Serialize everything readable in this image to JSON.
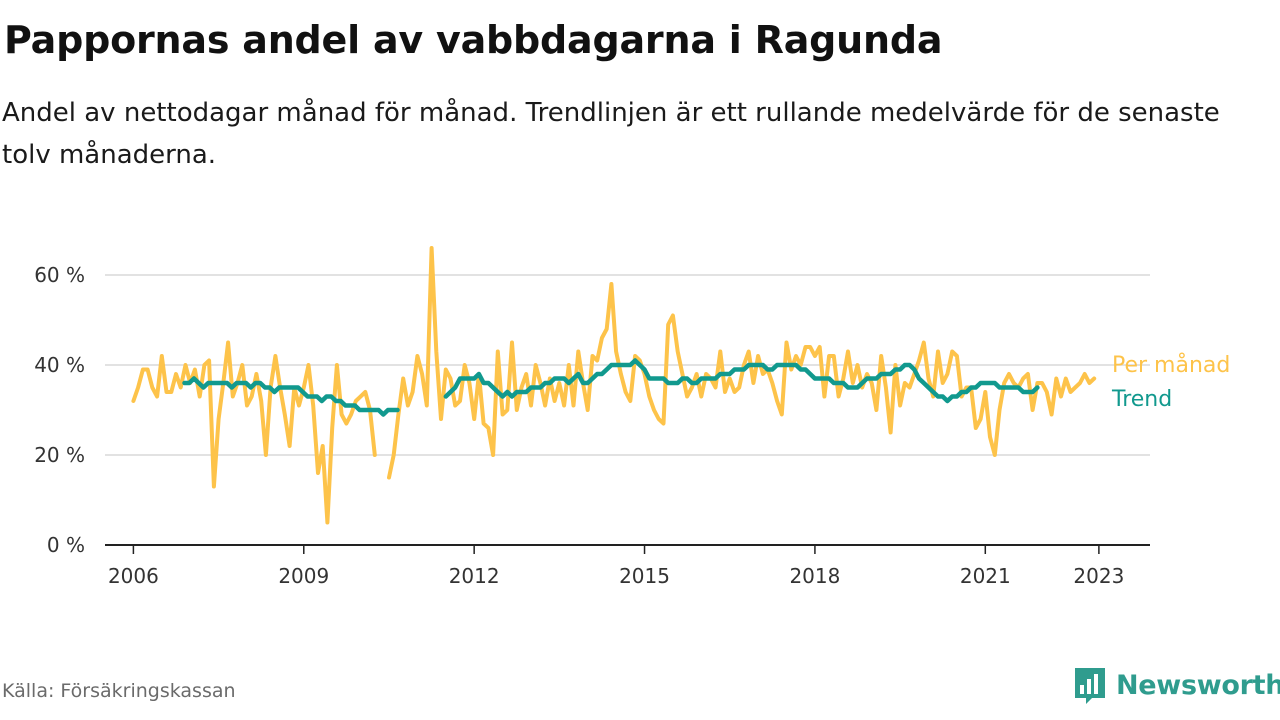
{
  "title": "Pappornas andel av vabbdagarna i Ragunda",
  "subtitle": "Andel av nettodagar månad för månad. Trendlinjen är ett rullande medelvärde för de senaste tolv månaderna.",
  "source": "Källa: Försäkringskassan",
  "brand": {
    "name": "Newsworthy",
    "icon": "newsworthy-logo-icon"
  },
  "colors": {
    "monthly": "#fdc34a",
    "trend": "#11998e",
    "grid": "#d9d9d9",
    "axis": "#222222",
    "brand": "#2f9c8e"
  },
  "chart_data": {
    "type": "line",
    "ylim": [
      0,
      70
    ],
    "xlim": [
      2005.5,
      2023.9
    ],
    "yticks": [
      {
        "value": 0,
        "label": "0 %"
      },
      {
        "value": 20,
        "label": "20 %"
      },
      {
        "value": 40,
        "label": "40 %"
      },
      {
        "value": 60,
        "label": "60 %"
      }
    ],
    "xticks": [
      {
        "value": 2006,
        "label": "2006"
      },
      {
        "value": 2009,
        "label": "2009"
      },
      {
        "value": 2012,
        "label": "2012"
      },
      {
        "value": 2015,
        "label": "2015"
      },
      {
        "value": 2018,
        "label": "2018"
      },
      {
        "value": 2021,
        "label": "2021"
      },
      {
        "value": 2023,
        "label": "2023"
      }
    ],
    "series": [
      {
        "name": "Per månad",
        "color": "#fdc34a",
        "segments": [
          {
            "start": 2006.0,
            "values": [
              32,
              35,
              39,
              39,
              35,
              33,
              42,
              34,
              34,
              38,
              35,
              40,
              36,
              39,
              33,
              40,
              41,
              13,
              28,
              36,
              45,
              33,
              36,
              40,
              31,
              33,
              38,
              32,
              20,
              35,
              42,
              35,
              29,
              22,
              35,
              31,
              35,
              40,
              31,
              16,
              22,
              5,
              26,
              40,
              29,
              27,
              29,
              32,
              33,
              34,
              30,
              20
            ]
          },
          {
            "start": 2010.5,
            "values": [
              15,
              20,
              29,
              37,
              31,
              34,
              42,
              38,
              31,
              66,
              43,
              28,
              39,
              37,
              31,
              32,
              40,
              36,
              28,
              38,
              27,
              26,
              20,
              43,
              29,
              30,
              45,
              30,
              35,
              38,
              31,
              40,
              36,
              31,
              37,
              32,
              36,
              31,
              40,
              31,
              43,
              36,
              30,
              42,
              41,
              46,
              48,
              58,
              43,
              38,
              34,
              32,
              42,
              41,
              38,
              33,
              30,
              28,
              27,
              49,
              51,
              43,
              38,
              33,
              35,
              38,
              33,
              38,
              37,
              35,
              43,
              34,
              37,
              34,
              35,
              40,
              43,
              36,
              42,
              38,
              39,
              36,
              32,
              29,
              45,
              39,
              42,
              40,
              44,
              44,
              42,
              44,
              33,
              42,
              42,
              33,
              37,
              43,
              36,
              40,
              35,
              38,
              36,
              30,
              42,
              35,
              25,
              40,
              31,
              36,
              35,
              38,
              41,
              45,
              37,
              33,
              43,
              36,
              38,
              43,
              42,
              33,
              35,
              35,
              26,
              28,
              34,
              24,
              20,
              30,
              36,
              38,
              36,
              35,
              37,
              38,
              30,
              36,
              36,
              34,
              29,
              37,
              33,
              37,
              34,
              35,
              36,
              38,
              36,
              37
            ]
          }
        ]
      },
      {
        "name": "Trend",
        "color": "#11998e",
        "segments": [
          {
            "start": 2006.9,
            "values": [
              36,
              36,
              37,
              36,
              35,
              36,
              36,
              36,
              36,
              36,
              35,
              36,
              36,
              36,
              35,
              36,
              36,
              35,
              35,
              34,
              35,
              35,
              35,
              35,
              35,
              34,
              33,
              33,
              33,
              32,
              33,
              33,
              32,
              32,
              31,
              31,
              31,
              30,
              30,
              30,
              30,
              30,
              29,
              30,
              30,
              30
            ]
          },
          {
            "start": 2011.5,
            "values": [
              33,
              34,
              35,
              37,
              37,
              37,
              37,
              38,
              36,
              36,
              35,
              34,
              33,
              34,
              33,
              34,
              34,
              34,
              35,
              35,
              35,
              36,
              36,
              37,
              37,
              37,
              36,
              37,
              38,
              36,
              36,
              37,
              38,
              38,
              39,
              40,
              40,
              40,
              40,
              40,
              41,
              40,
              39,
              37,
              37,
              37,
              37,
              36,
              36,
              36,
              37,
              37,
              36,
              36,
              37,
              37,
              37,
              37,
              38,
              38,
              38,
              39,
              39,
              39,
              40,
              40,
              40,
              40,
              39,
              39,
              40,
              40,
              40,
              40,
              40,
              39,
              39,
              38,
              37,
              37,
              37,
              37,
              36,
              36,
              36,
              35,
              35,
              35,
              36,
              37,
              37,
              37,
              38,
              38,
              38,
              39,
              39,
              40,
              40,
              39,
              37,
              36,
              35,
              34,
              33,
              33,
              32,
              33,
              33,
              34,
              34,
              35,
              35,
              36,
              36,
              36,
              36,
              35,
              35,
              35,
              35,
              35,
              34,
              34,
              34,
              35
            ]
          }
        ]
      }
    ]
  }
}
